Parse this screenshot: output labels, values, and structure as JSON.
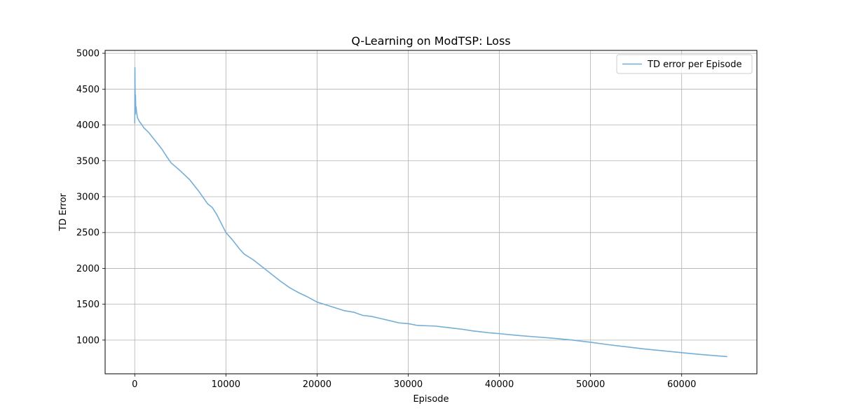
{
  "chart_data": {
    "type": "line",
    "title": "Q-Learning on ModTSP: Loss",
    "xlabel": "Episode",
    "ylabel": "TD Error",
    "xlim": [
      -3250,
      68250
    ],
    "ylim": [
      530,
      5040
    ],
    "xticks": [
      0,
      10000,
      20000,
      30000,
      40000,
      50000,
      60000
    ],
    "yticks": [
      1000,
      1500,
      2000,
      2500,
      3000,
      3500,
      4000,
      4500,
      5000
    ],
    "grid": true,
    "legend_position": "top-right",
    "series": [
      {
        "name": "TD error per Episode",
        "color": "#75aed6",
        "x": [
          0,
          20,
          40,
          60,
          80,
          100,
          120,
          150,
          200,
          300,
          500,
          800,
          1000,
          1500,
          2000,
          2500,
          3000,
          3500,
          4000,
          5000,
          6000,
          7000,
          8000,
          8500,
          9000,
          10000,
          10700,
          11500,
          12000,
          13000,
          14000,
          15000,
          16000,
          17000,
          18000,
          19000,
          20000,
          21000,
          22000,
          23000,
          24000,
          25000,
          26000,
          27000,
          28000,
          29000,
          30000,
          31000,
          32000,
          33000,
          34000,
          35000,
          36000,
          37000,
          38000,
          39000,
          40000,
          42000,
          44000,
          46000,
          48000,
          50000,
          52000,
          54000,
          56000,
          58000,
          60000,
          62000,
          64000,
          65000
        ],
        "y": [
          4020,
          4800,
          4480,
          4150,
          4420,
          4300,
          4200,
          4250,
          4180,
          4100,
          4050,
          4000,
          3960,
          3900,
          3820,
          3740,
          3660,
          3560,
          3470,
          3360,
          3240,
          3080,
          2900,
          2850,
          2750,
          2500,
          2400,
          2270,
          2200,
          2120,
          2020,
          1920,
          1820,
          1730,
          1660,
          1600,
          1530,
          1490,
          1450,
          1410,
          1390,
          1345,
          1330,
          1300,
          1270,
          1240,
          1230,
          1205,
          1200,
          1195,
          1180,
          1165,
          1150,
          1130,
          1115,
          1100,
          1090,
          1065,
          1045,
          1025,
          1000,
          970,
          935,
          905,
          875,
          850,
          825,
          800,
          780,
          770
        ]
      }
    ]
  }
}
